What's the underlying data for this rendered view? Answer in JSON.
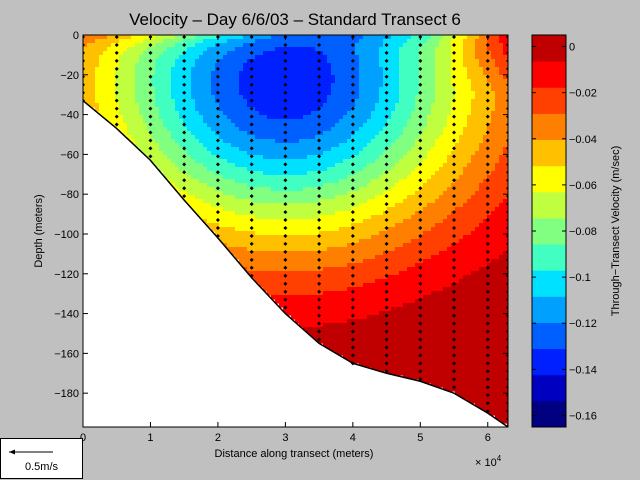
{
  "chart_data": {
    "type": "heatmap",
    "title": "Velocity – Day 6/6/03 – Standard Transect 6",
    "xlabel": "Distance along transect (meters)",
    "ylabel": "Depth (meters)",
    "x_multiplier": "× 10",
    "x_multiplier_exp": "4",
    "xlim": [
      0,
      63000
    ],
    "ylim": [
      -197,
      0
    ],
    "x_ticks": [
      "0",
      "1",
      "2",
      "3",
      "4",
      "5",
      "6"
    ],
    "y_ticks": [
      "0",
      "−20",
      "−40",
      "−60",
      "−80",
      "−100",
      "−120",
      "−140",
      "−160",
      "−180"
    ],
    "colorbar": {
      "label": "Through−Transect Velocity (m/sec)",
      "range": [
        -0.165,
        0.005
      ],
      "ticks": [
        "0",
        "−0.02",
        "−0.04",
        "−0.06",
        "−0.08",
        "−0.1",
        "−0.12",
        "−0.14",
        "−0.16"
      ],
      "colors": [
        "#000080",
        "#0000c0",
        "#0020ff",
        "#0060ff",
        "#00a0ff",
        "#00e0ff",
        "#40ffc0",
        "#80ff80",
        "#c0ff40",
        "#ffff00",
        "#ffc000",
        "#ff8000",
        "#ff4000",
        "#ff0000",
        "#c00000"
      ]
    },
    "bottom_profile": {
      "x": [
        0,
        5000,
        10000,
        15000,
        20000,
        25000,
        30000,
        35000,
        40000,
        45000,
        50000,
        55000,
        60000,
        63000
      ],
      "depth": [
        -33,
        -47,
        -63,
        -83,
        -102,
        -122,
        -140,
        -155,
        -165,
        -170,
        -174,
        -180,
        -190,
        -197
      ]
    },
    "core": {
      "x": 30000,
      "depth": -23,
      "value": -0.14
    },
    "profiles_x": [
      0,
      5000,
      10000,
      15000,
      20000,
      25000,
      30000,
      35000,
      40000,
      45000,
      50000,
      55000,
      60000,
      63000
    ],
    "sample_spacing_m": 4,
    "scale_arrow_label": "0.5m/s"
  }
}
